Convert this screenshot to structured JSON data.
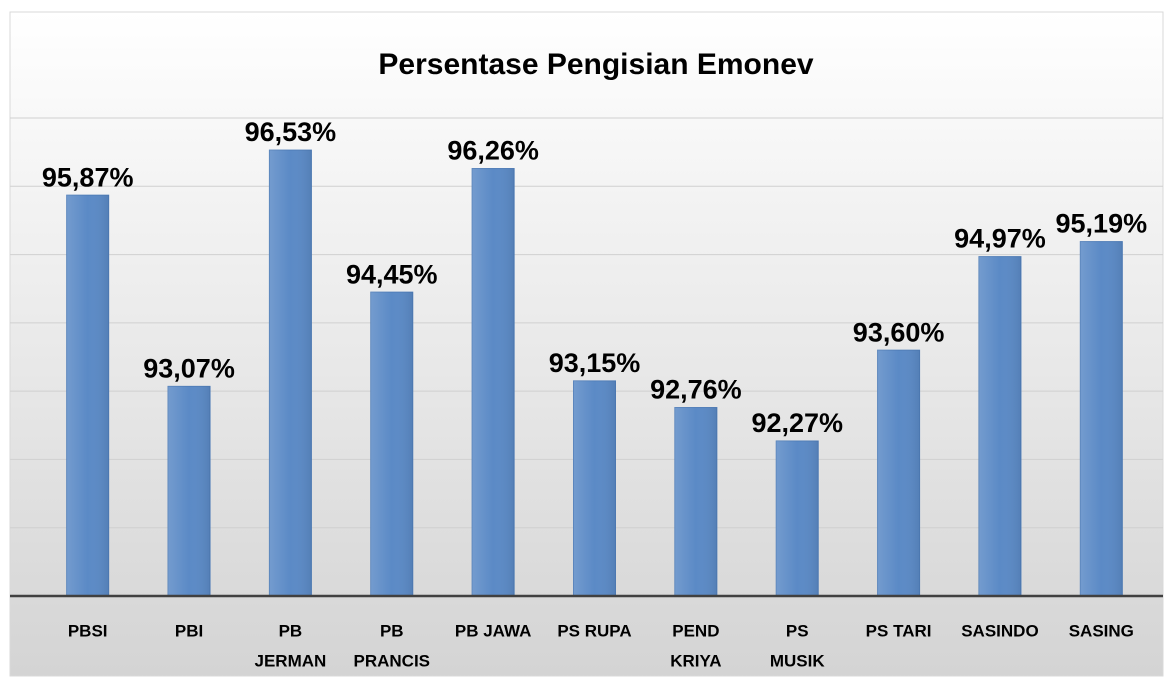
{
  "chart_data": {
    "type": "bar",
    "title": "Persentase Pengisian Emonev",
    "categories": [
      "PBSI",
      "PBI",
      [
        "PB",
        "JERMAN"
      ],
      [
        "PB",
        "PRANCIS"
      ],
      "PB JAWA",
      "PS RUPA",
      [
        "PEND",
        "KRIYA"
      ],
      [
        "PS",
        "MUSIK"
      ],
      "PS TARI",
      "SASINDO",
      "SASING"
    ],
    "values": [
      95.87,
      93.07,
      96.53,
      94.45,
      96.26,
      93.15,
      92.76,
      92.27,
      93.6,
      94.97,
      95.19
    ],
    "value_labels": [
      "95,87%",
      "93,07%",
      "96,53%",
      "94,45%",
      "96,26%",
      "93,15%",
      "92,76%",
      "92,27%",
      "93,60%",
      "94,97%",
      "95,19%"
    ],
    "color": "#5b8ac6",
    "ylim": [
      90,
      97
    ],
    "yticks": [
      90,
      91,
      92,
      93,
      94,
      95,
      96,
      97
    ],
    "grid": true
  }
}
